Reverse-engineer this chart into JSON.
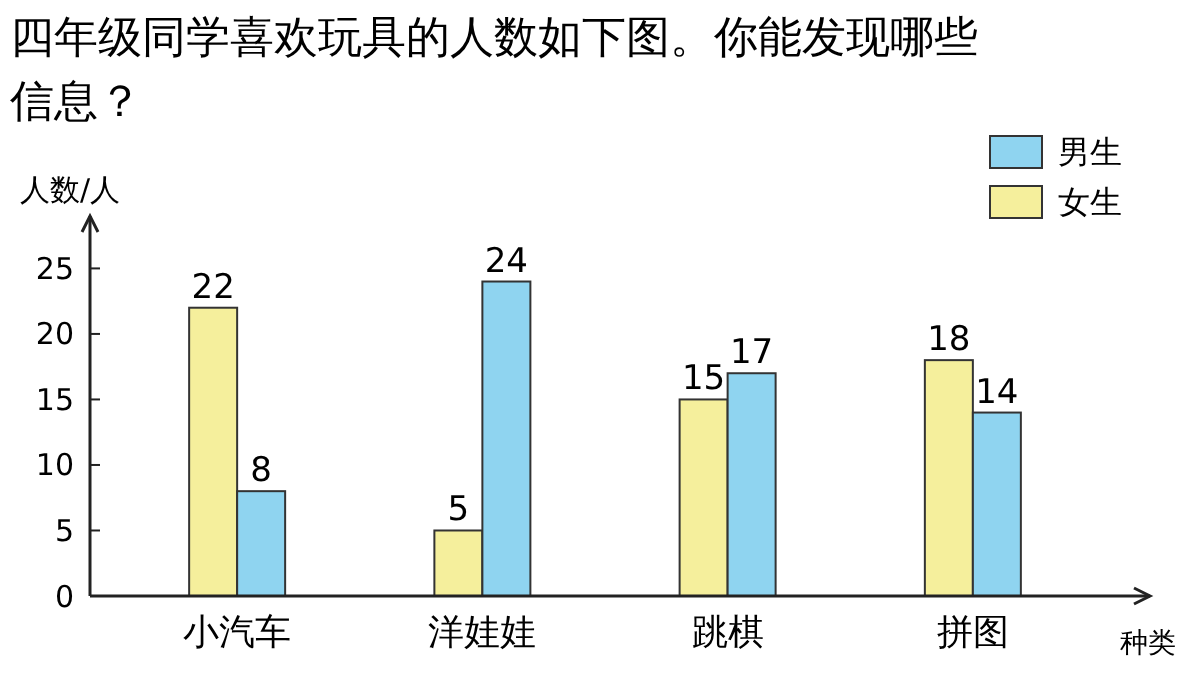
{
  "chart_data": {
    "type": "bar",
    "title": "四年级同学喜欢玩具的人数如下图。你能发现哪些信息？",
    "ylabel": "人数/人",
    "xlabel": "种类",
    "categories": [
      "小汽车",
      "洋娃娃",
      "跳棋",
      "拼图"
    ],
    "series": [
      {
        "name": "女生",
        "color": "#f5ef9c",
        "values": [
          22,
          5,
          15,
          18
        ]
      },
      {
        "name": "男生",
        "color": "#8fd4f0",
        "values": [
          8,
          24,
          17,
          14
        ]
      }
    ],
    "ylim": [
      0,
      29
    ],
    "yticks": [
      0,
      5,
      10,
      15,
      20,
      25
    ],
    "data_labels": true,
    "legend": "top right",
    "grid": false
  }
}
